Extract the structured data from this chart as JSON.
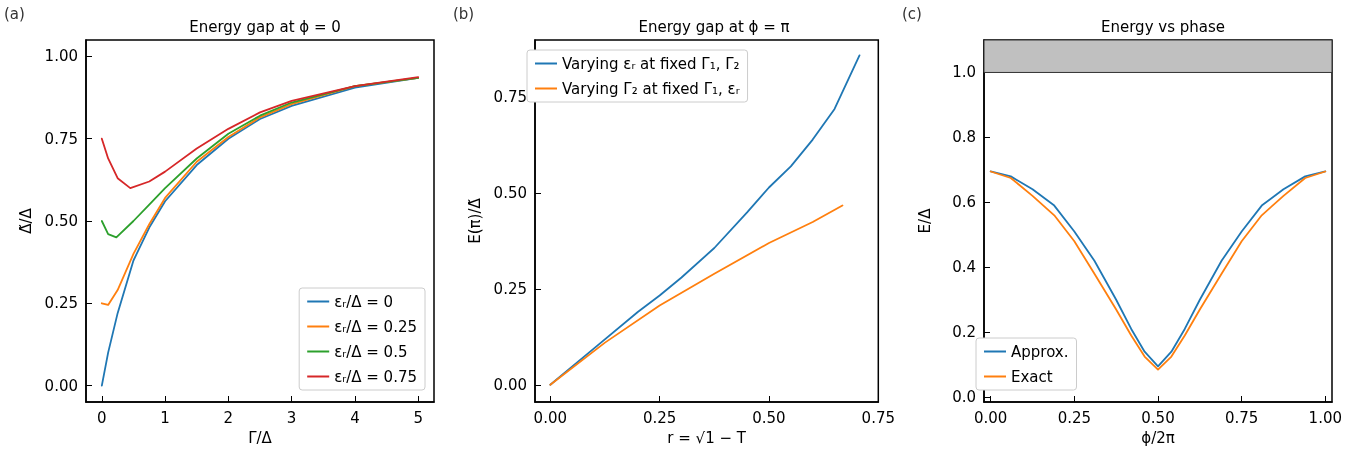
{
  "chart_data": [
    {
      "type": "line",
      "title": "Energy gap at ϕ = 0",
      "xlabel": "Γ/Δ",
      "ylabel": "Δ̃/Δ",
      "annotations": [
        "(a)"
      ],
      "xlim": [
        -0.25,
        5.25
      ],
      "ylim": [
        -0.05,
        1.05
      ],
      "xticks": [
        0,
        1,
        2,
        3,
        4,
        5
      ],
      "yticks": [
        {
          "value": 0,
          "label": "0.00"
        },
        {
          "value": 0.25,
          "label": "0.25"
        },
        {
          "value": 0.5,
          "label": "0.50"
        },
        {
          "value": 0.75,
          "label": "0.75"
        },
        {
          "value": 1,
          "label": "1.00"
        }
      ],
      "grid": false,
      "legend": "bottom right",
      "series": [
        {
          "name": "εᵣ/Δ = 0",
          "color": "#1f77b4",
          "x": [
            0,
            0.1,
            0.25,
            0.5,
            0.75,
            1,
            1.5,
            2,
            2.5,
            3,
            4,
            5
          ],
          "values": [
            0,
            0.1,
            0.22,
            0.38,
            0.48,
            0.56,
            0.67,
            0.75,
            0.81,
            0.85,
            0.905,
            0.935
          ]
        },
        {
          "name": "εᵣ/Δ = 0.25",
          "color": "#ff7f0e",
          "x": [
            0,
            0.1,
            0.25,
            0.5,
            0.75,
            1,
            1.5,
            2,
            2.5,
            3,
            4,
            5
          ],
          "values": [
            0.25,
            0.245,
            0.29,
            0.4,
            0.49,
            0.57,
            0.68,
            0.755,
            0.815,
            0.855,
            0.91,
            0.935
          ]
        },
        {
          "name": "εᵣ/Δ = 0.5",
          "color": "#2ca02c",
          "x": [
            0,
            0.1,
            0.23,
            0.5,
            0.75,
            1,
            1.5,
            2,
            2.5,
            3,
            4,
            5
          ],
          "values": [
            0.5,
            0.46,
            0.45,
            0.5,
            0.55,
            0.6,
            0.69,
            0.765,
            0.82,
            0.86,
            0.91,
            0.935
          ]
        },
        {
          "name": "εᵣ/Δ = 0.75",
          "color": "#d62728",
          "x": [
            0,
            0.1,
            0.25,
            0.45,
            0.75,
            1,
            1.5,
            2,
            2.5,
            3,
            4,
            5
          ],
          "values": [
            0.75,
            0.69,
            0.63,
            0.6,
            0.62,
            0.65,
            0.72,
            0.78,
            0.83,
            0.865,
            0.91,
            0.937
          ]
        }
      ]
    },
    {
      "type": "line",
      "title": "Energy gap at ϕ = π",
      "xlabel": "r = √1 − T",
      "ylabel": "E(π)/Δ̃",
      "annotations": [
        "(b)"
      ],
      "xlim": [
        -0.035,
        0.75
      ],
      "ylim": [
        -0.045,
        0.9
      ],
      "xticks": [
        {
          "value": 0,
          "label": "0.00"
        },
        0.25,
        {
          "value": 0.5,
          "label": "0.50"
        },
        0.75
      ],
      "yticks": [
        {
          "value": 0,
          "label": "0.00"
        },
        0.25,
        {
          "value": 0.5,
          "label": "0.50"
        },
        0.75
      ],
      "grid": false,
      "legend": "top left",
      "series": [
        {
          "name": "Varying εᵣ at fixed Γ₁, Γ₂",
          "color": "#1f77b4",
          "x": [
            0,
            0.1,
            0.2,
            0.25,
            0.3,
            0.375,
            0.45,
            0.5,
            0.55,
            0.6,
            0.65,
            0.707
          ],
          "values": [
            0,
            0.095,
            0.19,
            0.233,
            0.28,
            0.357,
            0.45,
            0.515,
            0.57,
            0.64,
            0.72,
            0.86
          ]
        },
        {
          "name": "Varying Γ₂ at fixed Γ₁, εᵣ",
          "color": "#ff7f0e",
          "x": [
            0,
            0.125,
            0.25,
            0.375,
            0.5,
            0.6,
            0.668
          ],
          "values": [
            0,
            0.11,
            0.207,
            0.29,
            0.37,
            0.425,
            0.468
          ]
        }
      ]
    },
    {
      "type": "line",
      "title": "Energy vs phase",
      "xlabel": "ϕ/2π",
      "ylabel": "E/Δ",
      "annotations": [
        "(c)"
      ],
      "xlim": [
        -0.02,
        1.02
      ],
      "ylim": [
        -0.015,
        1.1
      ],
      "xticks": [
        {
          "value": 0,
          "label": "0.00"
        },
        0.25,
        {
          "value": 0.5,
          "label": "0.50"
        },
        0.75,
        {
          "value": 1,
          "label": "1.00"
        }
      ],
      "yticks": [
        {
          "value": 0,
          "label": "0.0"
        },
        0.2,
        0.4,
        0.6,
        0.8,
        {
          "value": 1,
          "label": "1.0"
        }
      ],
      "grid": false,
      "legend": "bottom left",
      "bands": [
        {
          "axis": "y",
          "from": 1.0,
          "to": 1.1,
          "color": "#c0c0c0"
        }
      ],
      "series": [
        {
          "name": "Approx.",
          "color": "#1f77b4",
          "x": [
            0,
            0.06,
            0.125,
            0.19,
            0.25,
            0.31,
            0.375,
            0.42,
            0.46,
            0.5,
            0.54,
            0.58,
            0.625,
            0.69,
            0.75,
            0.81,
            0.875,
            0.94,
            1
          ],
          "values": [
            0.695,
            0.68,
            0.64,
            0.59,
            0.51,
            0.42,
            0.3,
            0.21,
            0.14,
            0.095,
            0.14,
            0.21,
            0.3,
            0.42,
            0.51,
            0.59,
            0.64,
            0.68,
            0.695
          ]
        },
        {
          "name": "Exact",
          "color": "#ff7f0e",
          "x": [
            0,
            0.06,
            0.125,
            0.19,
            0.25,
            0.31,
            0.375,
            0.42,
            0.46,
            0.5,
            0.54,
            0.58,
            0.625,
            0.69,
            0.75,
            0.81,
            0.875,
            0.94,
            1
          ],
          "values": [
            0.695,
            0.675,
            0.62,
            0.56,
            0.48,
            0.38,
            0.27,
            0.19,
            0.125,
            0.085,
            0.125,
            0.19,
            0.27,
            0.38,
            0.48,
            0.56,
            0.62,
            0.675,
            0.695
          ]
        }
      ]
    }
  ]
}
